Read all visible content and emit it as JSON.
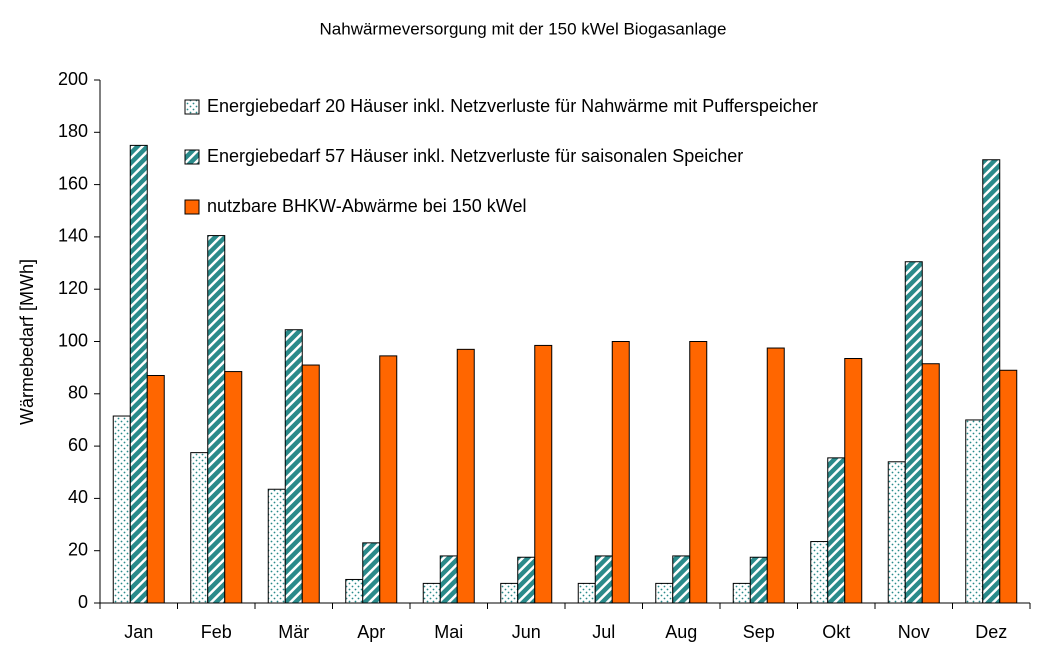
{
  "chart_data": {
    "type": "bar",
    "title": "Nahwärmeversorgung mit der 150 kWel Biogasanlage",
    "y_label": "Wärmebedarf [MWh]",
    "categories": [
      "Jan",
      "Feb",
      "Mär",
      "Apr",
      "Mai",
      "Jun",
      "Jul",
      "Aug",
      "Sep",
      "Okt",
      "Nov",
      "Dez"
    ],
    "series": [
      {
        "name": "Energiebedarf  20 Häuser inkl. Netzverluste für Nahwärme mit Pufferspeicher",
        "color": "#2a8a8a",
        "pattern": "dots",
        "values": [
          71.5,
          57.5,
          43.5,
          9,
          7.5,
          7.5,
          7.5,
          7.5,
          7.5,
          23.5,
          54,
          70
        ]
      },
      {
        "name": "Energiebedarf  57 Häuser inkl. Netzverluste für saisonalen Speicher",
        "color": "#2a8a8a",
        "pattern": "stripes",
        "values": [
          175,
          140.5,
          104.5,
          23,
          18,
          17.5,
          18,
          18,
          17.5,
          55.5,
          130.5,
          169.5
        ]
      },
      {
        "name": "nutzbare BHKW-Abwärme bei 150 kWel",
        "color": "#ff6600",
        "pattern": "solid",
        "values": [
          87,
          88.5,
          91,
          94.5,
          97,
          98.5,
          100,
          100,
          97.5,
          93.5,
          91.5,
          89
        ]
      }
    ],
    "ylim": [
      0,
      200
    ],
    "yticks": [
      0,
      20,
      40,
      60,
      80,
      100,
      120,
      140,
      160,
      180,
      200
    ],
    "grid": false,
    "legend": "top-left"
  }
}
